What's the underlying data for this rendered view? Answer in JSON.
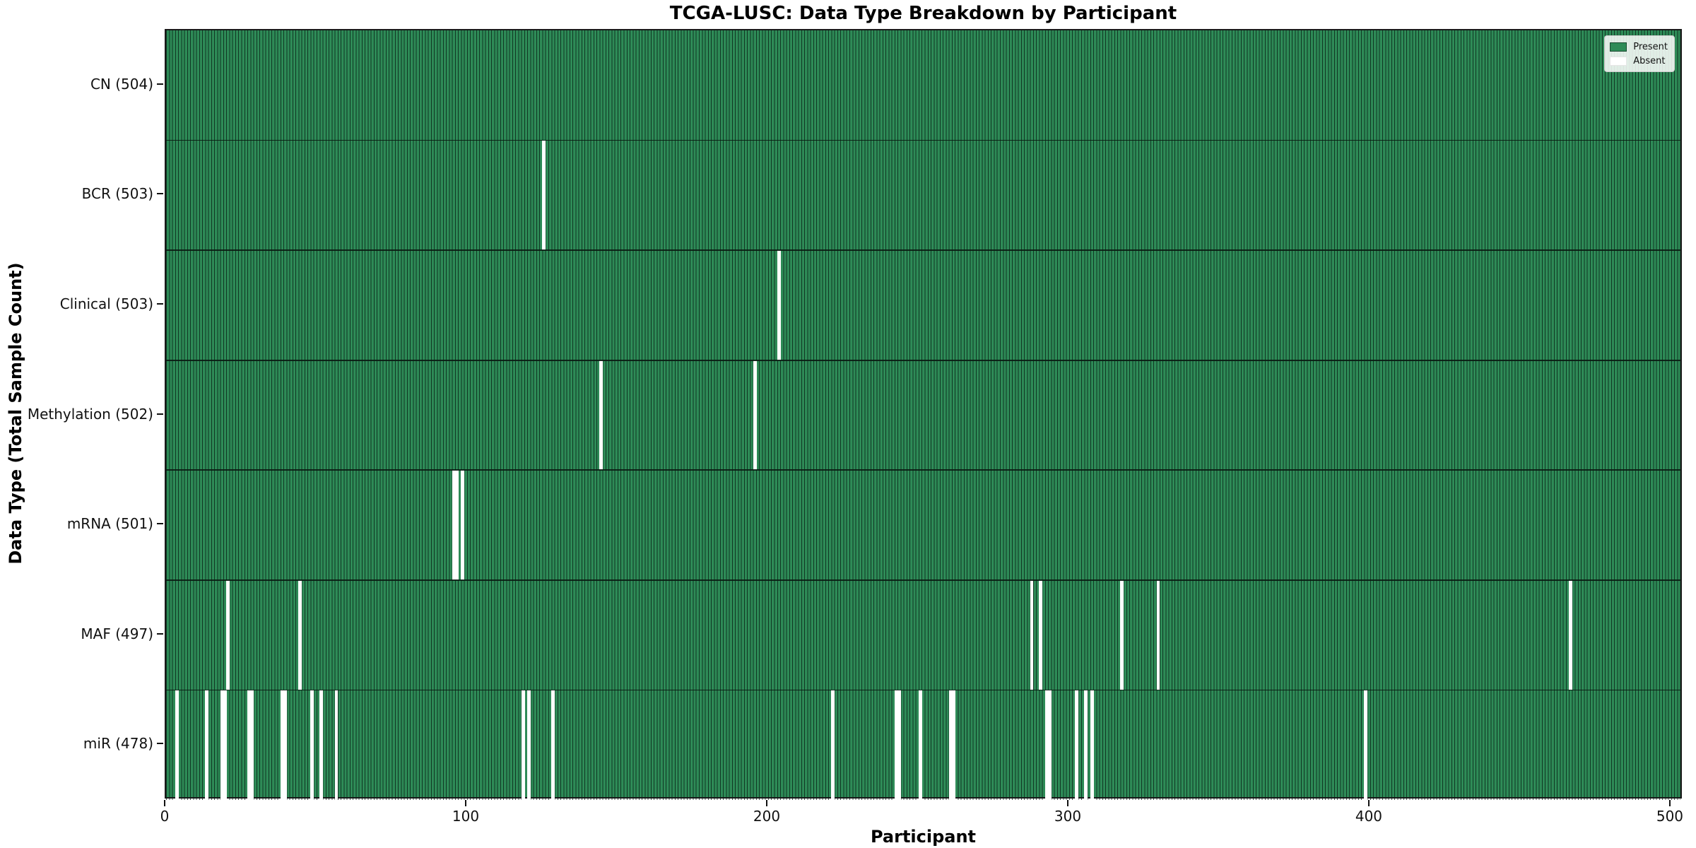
{
  "title": "TCGA-LUSC: Data Type Breakdown by Participant",
  "axes": {
    "x_label": "Participant",
    "y_label": "Data Type (Total Sample Count)",
    "x_ticks": [
      0,
      100,
      200,
      300,
      400,
      500
    ]
  },
  "legend": {
    "present_label": "Present",
    "absent_label": "Absent"
  },
  "colors": {
    "present": "#2e8b57",
    "absent": "#ffffff",
    "bar_edge": "#0a1e14",
    "axis": "#1a1a1a"
  },
  "chart_data": {
    "type": "heatmap",
    "title": "TCGA-LUSC: Data Type Breakdown by Participant",
    "xlabel": "Participant",
    "ylabel": "Data Type (Total Sample Count)",
    "x_range": [
      0,
      504
    ],
    "total_participants": 504,
    "legend_position": "upper right",
    "grid": false,
    "value_encoding": {
      "present": 1,
      "absent": 0
    },
    "rows": [
      {
        "label": "CN",
        "count": 504,
        "display": "CN (504)",
        "absent_participants": []
      },
      {
        "label": "BCR",
        "count": 503,
        "display": "BCR (503)",
        "absent_participants": [
          125
        ]
      },
      {
        "label": "Clinical",
        "count": 503,
        "display": "Clinical (503)",
        "absent_participants": [
          203
        ]
      },
      {
        "label": "Methylation",
        "count": 502,
        "display": "Methylation (502)",
        "absent_participants": [
          144,
          195
        ]
      },
      {
        "label": "mRNA",
        "count": 501,
        "display": "mRNA (501)",
        "absent_participants": [
          95,
          96,
          98
        ]
      },
      {
        "label": "MAF",
        "count": 497,
        "display": "MAF (497)",
        "absent_participants": [
          20,
          44,
          287,
          290,
          317,
          329,
          466
        ]
      },
      {
        "label": "miR",
        "count": 478,
        "display": "miR (478)",
        "absent_participants": [
          3,
          13,
          18,
          19,
          27,
          28,
          38,
          39,
          48,
          51,
          56,
          118,
          120,
          128,
          221,
          242,
          243,
          250,
          260,
          261,
          292,
          293,
          302,
          305,
          307,
          398
        ]
      }
    ]
  }
}
